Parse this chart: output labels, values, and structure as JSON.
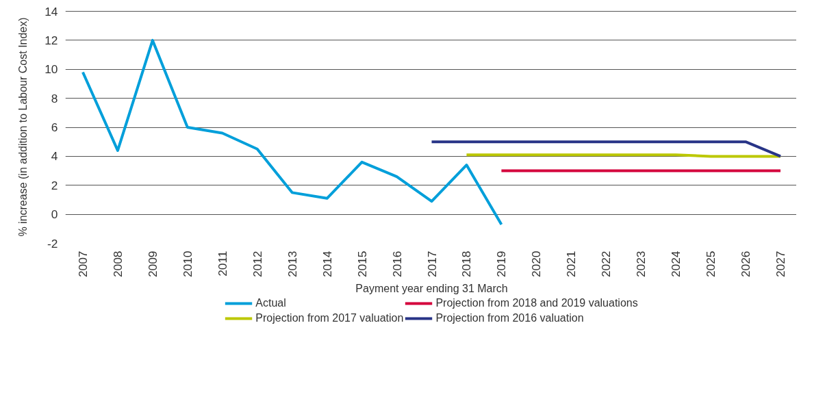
{
  "chart_data": {
    "type": "line",
    "xlabel": "Payment year ending 31 March",
    "ylabel": "% increase (in addition to Labour Cost Index)",
    "categories": [
      "2007",
      "2008",
      "2009",
      "2010",
      "2011",
      "2012",
      "2013",
      "2014",
      "2015",
      "2016",
      "2017",
      "2018",
      "2019",
      "2020",
      "2021",
      "2022",
      "2023",
      "2024",
      "2025",
      "2026",
      "2027"
    ],
    "series": [
      {
        "name": "Actual",
        "color": "#009fda",
        "values": [
          9.8,
          4.4,
          12.0,
          6.0,
          5.6,
          4.5,
          1.5,
          1.1,
          3.6,
          2.6,
          0.9,
          3.4,
          -0.7,
          null,
          null,
          null,
          null,
          null,
          null,
          null,
          null
        ]
      },
      {
        "name": "Projection from 2017 valuation",
        "color": "#bcc800",
        "values": [
          null,
          null,
          null,
          null,
          null,
          null,
          null,
          null,
          null,
          null,
          null,
          4.1,
          4.1,
          4.1,
          4.1,
          4.1,
          4.1,
          4.1,
          4.0,
          4.0,
          4.0
        ]
      },
      {
        "name": "Projection from 2018 and 2019 valuations",
        "color": "#d4003c",
        "values": [
          null,
          null,
          null,
          null,
          null,
          null,
          null,
          null,
          null,
          null,
          null,
          null,
          3.0,
          3.0,
          3.0,
          3.0,
          3.0,
          3.0,
          3.0,
          3.0,
          3.0
        ]
      },
      {
        "name": "Projection from 2016 valuation",
        "color": "#283487",
        "values": [
          null,
          null,
          null,
          null,
          null,
          null,
          null,
          null,
          null,
          null,
          5.0,
          5.0,
          5.0,
          5.0,
          5.0,
          5.0,
          5.0,
          5.0,
          5.0,
          5.0,
          4.0
        ]
      }
    ],
    "ylim": [
      -2,
      14
    ],
    "yticks": [
      -2,
      0,
      2,
      4,
      6,
      8,
      10,
      12,
      14
    ],
    "grid": "y",
    "legend": "bottom",
    "line_style": "solid",
    "marker": "none"
  }
}
